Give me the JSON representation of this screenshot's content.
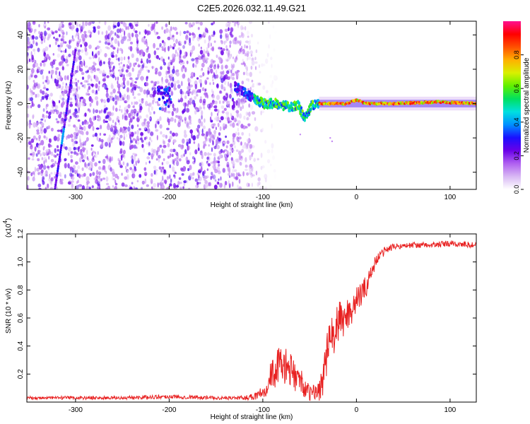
{
  "title": "C2E5.2026.032.11.49.G21",
  "chart_data": [
    {
      "type": "heatmap",
      "title": "C2E5.2026.032.11.49.G21",
      "xlabel": "Height of straight line (km)",
      "ylabel": "Frequency (Hz)",
      "xlim": [
        -352,
        128
      ],
      "ylim": [
        -50,
        48
      ],
      "xticks": [
        -300,
        -200,
        -100,
        0,
        100
      ],
      "yticks": [
        -40,
        -20,
        0,
        20,
        40
      ],
      "colorbar": {
        "label": "Normalized spectral amplitude",
        "range": [
          0.0,
          1.0
        ],
        "ticks": [
          0.0,
          0.2,
          0.4,
          0.6,
          0.8
        ],
        "colors": [
          "#ffffff",
          "#d8b8f4",
          "#b060f0",
          "#6a00e8",
          "#1a10ff",
          "#0090ff",
          "#00e0e0",
          "#00e060",
          "#60f000",
          "#d8f000",
          "#ffb000",
          "#ff5000",
          "#ff0000",
          "#ff1090"
        ]
      },
      "features": {
        "noise_region_x": [
          -352,
          -110
        ],
        "diagonal_streak": [
          [
            -322,
            -50
          ],
          [
            -300,
            31
          ]
        ],
        "signal_track": [
          [
            -130,
            10
          ],
          [
            -115,
            5
          ],
          [
            -100,
            0
          ],
          [
            -85,
            0
          ],
          [
            -72,
            -2
          ],
          [
            -62,
            -1
          ],
          [
            -55,
            -9
          ],
          [
            -48,
            -1
          ],
          [
            -40,
            0
          ],
          [
            -30,
            0
          ],
          [
            -10,
            0
          ],
          [
            0,
            2
          ],
          [
            10,
            0
          ],
          [
            40,
            0
          ],
          [
            90,
            1
          ],
          [
            128,
            0
          ]
        ]
      }
    },
    {
      "type": "line",
      "xlabel": "Height of straight line (km)",
      "ylabel": "SNR (10 * v/v)",
      "y_multiplier": "(x10",
      "y_multiplier_exp": "4",
      "y_multiplier_close": ")",
      "xlim": [
        -352,
        128
      ],
      "ylim": [
        0,
        1.2
      ],
      "xticks": [
        -300,
        -200,
        -100,
        0,
        100
      ],
      "yticks": [
        0.2,
        0.4,
        0.6,
        0.8,
        1.0,
        1.2
      ],
      "ytick_labels": [
        "0.2",
        "0.4",
        "0.6",
        "0.8",
        "1.0",
        "1.2"
      ],
      "series": [
        {
          "name": "SNR",
          "color": "#e82020",
          "x": [
            -352,
            -300,
            -250,
            -200,
            -150,
            -120,
            -110,
            -100,
            -90,
            -80,
            -70,
            -60,
            -50,
            -40,
            -35,
            -30,
            -20,
            -10,
            0,
            10,
            20,
            30,
            40,
            60,
            80,
            100,
            128
          ],
          "y": [
            0.03,
            0.03,
            0.03,
            0.04,
            0.03,
            0.03,
            0.04,
            0.08,
            0.2,
            0.28,
            0.22,
            0.15,
            0.06,
            0.08,
            0.2,
            0.4,
            0.55,
            0.62,
            0.72,
            0.82,
            1.0,
            1.08,
            1.11,
            1.12,
            1.12,
            1.13,
            1.12
          ],
          "noise": [
            0.012,
            0.012,
            0.012,
            0.015,
            0.012,
            0.015,
            0.03,
            0.06,
            0.12,
            0.14,
            0.12,
            0.1,
            0.05,
            0.08,
            0.14,
            0.16,
            0.16,
            0.13,
            0.1,
            0.08,
            0.05,
            0.03,
            0.02,
            0.02,
            0.02,
            0.025,
            0.02
          ]
        }
      ]
    }
  ]
}
